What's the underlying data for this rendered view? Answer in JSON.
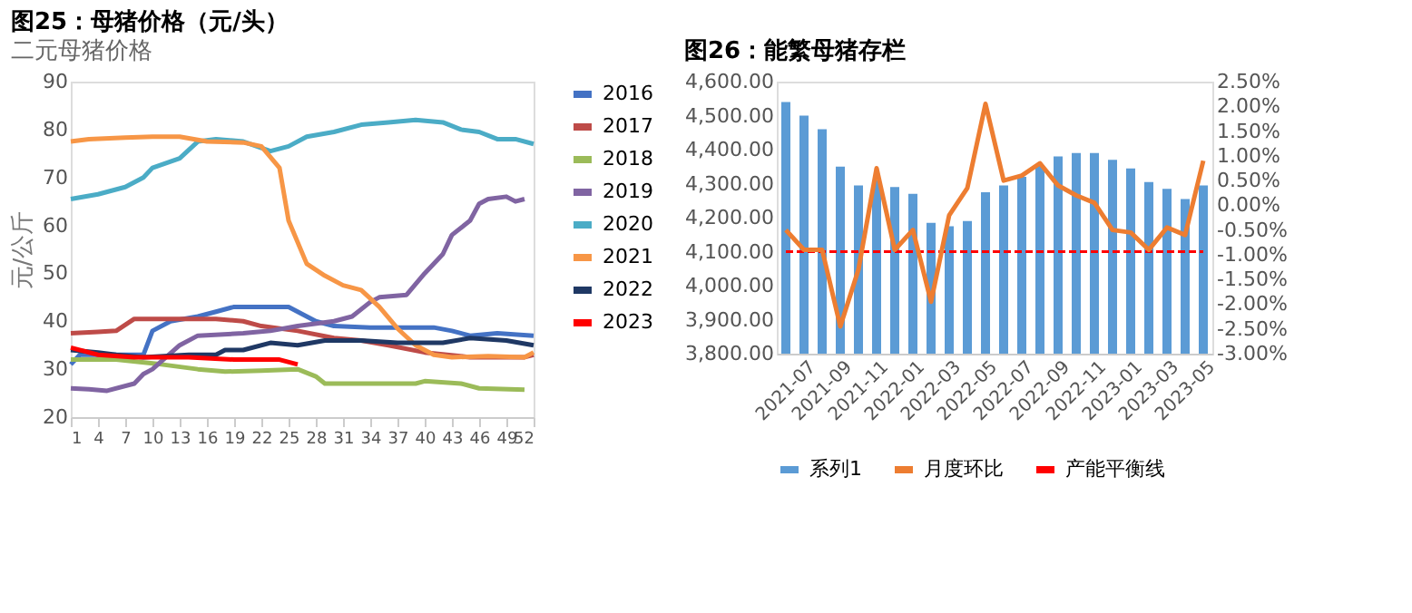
{
  "chart_data": [
    {
      "type": "line",
      "title": "图25：母猪价格（元/头）",
      "subtitle": "二元母猪价格",
      "ylabel": "元/公斤",
      "xlim": [
        1,
        52
      ],
      "xticks": [
        1,
        4,
        7,
        10,
        13,
        16,
        19,
        22,
        25,
        28,
        31,
        34,
        37,
        40,
        43,
        46,
        49,
        52
      ],
      "ylim": [
        20,
        90
      ],
      "yticks": [
        20,
        30,
        40,
        50,
        60,
        70,
        80,
        90
      ],
      "grid": false,
      "legend": "right",
      "marker": "none",
      "line_style": "solid",
      "series": [
        {
          "name": "2016",
          "color": "#4472c4",
          "x": [
            1,
            2,
            5,
            9,
            10,
            12,
            15,
            17,
            19,
            22,
            25,
            26,
            28,
            30,
            34,
            38,
            41,
            43,
            45,
            48,
            52
          ],
          "values": [
            31,
            33,
            33,
            33,
            38,
            40,
            41,
            42,
            43,
            43,
            43,
            42,
            40,
            39,
            38.7,
            38.7,
            38.7,
            38,
            37,
            37.5,
            37
          ]
        },
        {
          "name": "2017",
          "color": "#be4b48",
          "x": [
            1,
            4,
            6,
            8,
            12,
            17,
            20,
            22,
            26,
            30,
            33,
            36,
            40,
            45,
            51,
            52
          ],
          "values": [
            37.5,
            37.8,
            38,
            40.5,
            40.5,
            40.5,
            40,
            39,
            38,
            36.5,
            36,
            35,
            33.5,
            32.5,
            32.5,
            33
          ]
        },
        {
          "name": "2018",
          "color": "#9bbb59",
          "x": [
            1,
            6,
            11,
            15,
            18,
            22,
            26,
            28,
            29,
            34,
            39,
            40,
            44,
            46,
            51
          ],
          "values": [
            32,
            32,
            31,
            30,
            29.5,
            29.7,
            30,
            28.5,
            27,
            27,
            27,
            27.5,
            27,
            26,
            25.7
          ]
        },
        {
          "name": "2019",
          "color": "#8064a2",
          "x": [
            1,
            3,
            5,
            8,
            9,
            10,
            13,
            15,
            20,
            23,
            26,
            30,
            32,
            34,
            35,
            38,
            40,
            42,
            43,
            45,
            46,
            47,
            49,
            50,
            51
          ],
          "values": [
            26,
            25.8,
            25.5,
            27,
            29,
            30,
            35,
            37,
            37.5,
            38,
            39,
            40,
            41,
            44,
            45,
            45.5,
            50,
            54,
            58,
            61,
            64.5,
            65.5,
            66,
            65,
            65.5
          ]
        },
        {
          "name": "2020",
          "color": "#4bacc6",
          "x": [
            1,
            4,
            7,
            9,
            10,
            13,
            15,
            17,
            20,
            23,
            25,
            27,
            30,
            33,
            36,
            39,
            42,
            44,
            46,
            48,
            50,
            52
          ],
          "values": [
            65.5,
            66.5,
            68,
            70,
            72,
            74,
            77.5,
            78,
            77.5,
            75.5,
            76.5,
            78.5,
            79.5,
            81,
            81.5,
            82,
            81.5,
            80,
            79.5,
            78,
            78,
            77
          ]
        },
        {
          "name": "2021",
          "color": "#f79646",
          "x": [
            1,
            3,
            7,
            10,
            13,
            16,
            20,
            22,
            24,
            25,
            27,
            29,
            31,
            33,
            35,
            37,
            39,
            41,
            43,
            47,
            51,
            52
          ],
          "values": [
            77.5,
            78,
            78.3,
            78.5,
            78.5,
            77.5,
            77.3,
            76.5,
            72,
            61,
            52,
            49.5,
            47.5,
            46.5,
            43,
            38.5,
            35,
            33,
            32.5,
            32.7,
            32.5,
            33.5
          ]
        },
        {
          "name": "2022",
          "color": "#1f3864",
          "x": [
            1,
            4,
            6,
            9,
            14,
            17,
            18,
            20,
            23,
            26,
            29,
            33,
            37,
            42,
            45,
            49,
            52
          ],
          "values": [
            34,
            33.5,
            33,
            32.5,
            33,
            33,
            34,
            34,
            35.5,
            35,
            36,
            36,
            35.5,
            35.5,
            36.5,
            36,
            35
          ]
        },
        {
          "name": "2023",
          "color": "#ff0000",
          "x": [
            1,
            4,
            8,
            14,
            19,
            24,
            26
          ],
          "values": [
            34.5,
            33,
            32.5,
            32.5,
            32,
            32,
            31
          ]
        }
      ]
    },
    {
      "type": "bar",
      "title": "图26：能繁母猪存栏",
      "categories": [
        "2021-07",
        null,
        "2021-09",
        null,
        "2021-11",
        null,
        "2022-01",
        null,
        "2022-03",
        null,
        "2022-05",
        null,
        "2022-07",
        null,
        "2022-09",
        null,
        "2022-11",
        null,
        "2023-01",
        null,
        "2023-03",
        null,
        "2023-05",
        null
      ],
      "ylim": [
        3800,
        4600
      ],
      "yticks": [
        {
          "value": 3800,
          "label": "3,800.00"
        },
        {
          "value": 3900,
          "label": "3,900.00"
        },
        {
          "value": 4000,
          "label": "4,000.00"
        },
        {
          "value": 4100,
          "label": "4,100.00"
        },
        {
          "value": 4200,
          "label": "4,200.00"
        },
        {
          "value": 4300,
          "label": "4,300.00"
        },
        {
          "value": 4400,
          "label": "4,400.00"
        },
        {
          "value": 4500,
          "label": "4,500.00"
        },
        {
          "value": 4600,
          "label": "4,600.00"
        }
      ],
      "y2lim": [
        -3,
        2.5
      ],
      "y2ticks": [
        {
          "value": -3,
          "label": "-3.00%"
        },
        {
          "value": -2.5,
          "label": "-2.50%"
        },
        {
          "value": -2,
          "label": "-2.00%"
        },
        {
          "value": -1.5,
          "label": "-1.50%"
        },
        {
          "value": -1,
          "label": "-1.00%"
        },
        {
          "value": -0.5,
          "label": "-0.50%"
        },
        {
          "value": 0,
          "label": "0.00%"
        },
        {
          "value": 0.5,
          "label": "0.50%"
        },
        {
          "value": 1,
          "label": "1.00%"
        },
        {
          "value": 1.5,
          "label": "1.50%"
        },
        {
          "value": 2,
          "label": "2.00%"
        },
        {
          "value": 2.5,
          "label": "2.50%"
        }
      ],
      "grid": false,
      "legend": "bottom",
      "marker": "none",
      "series": [
        {
          "name": "系列1",
          "color": "#5b9bd5",
          "type": "bar",
          "values": [
            4540,
            4500,
            4460,
            4350,
            4295,
            4310,
            4290,
            4270,
            4185,
            4175,
            4190,
            4275,
            4295,
            4320,
            4355,
            4380,
            4390,
            4390,
            4370,
            4345,
            4305,
            4285,
            4255,
            4295
          ]
        },
        {
          "name": "月度环比",
          "color": "#ed7d31",
          "type": "line",
          "axis": "y2",
          "values": [
            -0.5,
            -0.9,
            -0.9,
            -2.45,
            -1.3,
            0.75,
            -0.9,
            -0.5,
            -1.95,
            -0.2,
            0.35,
            2.05,
            0.5,
            0.6,
            0.85,
            0.4,
            0.2,
            0.05,
            -0.5,
            -0.55,
            -0.9,
            -0.45,
            -0.6,
            0.9
          ]
        }
      ],
      "ref_lines": [
        {
          "axis": "y",
          "value": 4100,
          "label": "产能平衡线",
          "color": "#ff0000",
          "line_style": "dashed"
        }
      ]
    }
  ]
}
